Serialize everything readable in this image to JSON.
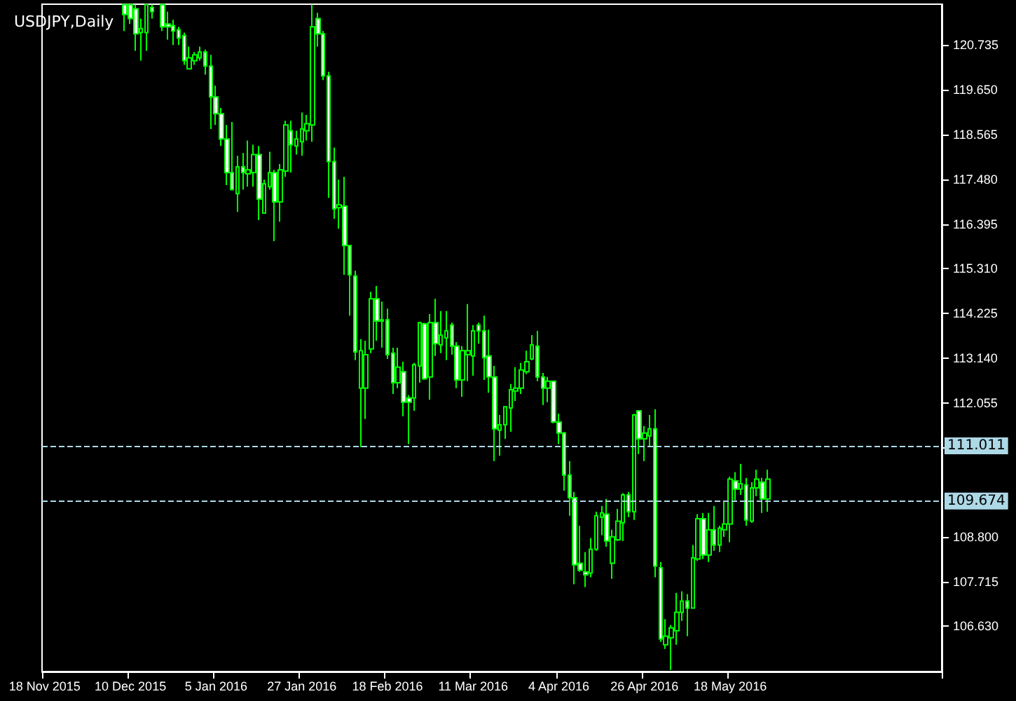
{
  "chart_data": {
    "type": "candlestick",
    "title": "USDJPY,Daily",
    "color": "#00ff00",
    "categories": [
      "18 Nov 2015",
      null,
      null,
      null,
      null,
      null,
      null,
      null,
      null,
      null,
      null,
      null,
      null,
      null,
      null,
      null,
      "10 Dec 2015",
      null,
      null,
      null,
      null,
      null,
      null,
      null,
      null,
      null,
      null,
      null,
      null,
      null,
      null,
      null,
      "5 Jan 2016",
      null,
      null,
      null,
      null,
      null,
      null,
      null,
      null,
      null,
      null,
      null,
      null,
      null,
      null,
      null,
      "27 Jan 2016",
      null,
      null,
      null,
      null,
      null,
      null,
      null,
      null,
      null,
      null,
      null,
      null,
      null,
      null,
      null,
      "18 Feb 2016",
      null,
      null,
      null,
      null,
      null,
      null,
      null,
      null,
      null,
      null,
      null,
      null,
      null,
      null,
      null,
      "11 Mar 2016",
      null,
      null,
      null,
      null,
      null,
      null,
      null,
      null,
      null,
      null,
      null,
      null,
      null,
      null,
      null,
      "4 Apr 2016",
      null,
      null,
      null,
      null,
      null,
      null,
      null,
      null,
      null,
      null,
      null,
      null,
      null,
      null,
      null,
      "26 Apr 2016",
      null,
      null,
      null,
      null,
      null,
      null,
      null,
      null,
      null,
      null,
      null,
      null,
      null,
      null,
      null,
      "18 May 2016",
      null,
      null,
      null,
      null,
      null,
      null,
      null,
      null,
      null,
      null,
      null,
      null,
      null,
      null,
      null,
      null,
      null,
      null,
      null,
      null,
      null,
      null,
      null,
      null,
      null,
      null,
      null,
      null,
      null,
      null,
      null,
      null,
      null,
      null,
      null,
      null,
      null,
      null,
      null
    ],
    "ohlc": [
      null,
      null,
      null,
      null,
      null,
      null,
      null,
      null,
      null,
      null,
      null,
      null,
      null,
      null,
      null,
      [
        121.72,
        121.72,
        121.08,
        121.48
      ],
      [
        121.72,
        121.72,
        121.25,
        121.38
      ],
      [
        121.62,
        121.72,
        120.6,
        121.01
      ],
      [
        121.04,
        121.38,
        120.36,
        121.14
      ],
      [
        121.04,
        121.72,
        120.6,
        121.72
      ],
      [
        121.65,
        121.72,
        121.38,
        121.55
      ],
      null,
      [
        121.72,
        121.72,
        121.08,
        121.18
      ],
      [
        121.25,
        121.55,
        120.87,
        121.18
      ],
      [
        121.21,
        121.35,
        120.74,
        121.08
      ],
      [
        121.11,
        121.18,
        120.74,
        120.91
      ],
      [
        120.97,
        121.04,
        120.26,
        120.36
      ],
      [
        120.16,
        120.7,
        120.16,
        120.43
      ],
      [
        120.36,
        120.57,
        120.26,
        120.5
      ],
      [
        120.43,
        120.7,
        120.36,
        120.57
      ],
      [
        120.57,
        120.63,
        120.02,
        120.23
      ],
      [
        120.23,
        120.5,
        118.7,
        119.48
      ],
      [
        119.48,
        119.75,
        118.8,
        119.07
      ],
      [
        119.07,
        119.21,
        118.29,
        118.46
      ],
      [
        118.46,
        118.8,
        117.34,
        117.64
      ],
      [
        117.64,
        118.87,
        117.23,
        117.23
      ],
      [
        117.13,
        118.05,
        116.69,
        117.78
      ],
      [
        117.78,
        118.12,
        117.23,
        117.64
      ],
      [
        117.61,
        118.42,
        117.3,
        117.71
      ],
      [
        117.64,
        118.32,
        117.3,
        118.08
      ],
      [
        118.08,
        118.29,
        116.49,
        117.0
      ],
      [
        116.66,
        117.47,
        116.66,
        117.37
      ],
      [
        117.3,
        118.15,
        117.23,
        117.64
      ],
      [
        117.64,
        117.71,
        115.98,
        116.93
      ],
      [
        116.93,
        117.85,
        116.45,
        117.71
      ],
      [
        117.68,
        118.9,
        117.54,
        118.8
      ],
      [
        118.66,
        118.9,
        117.64,
        118.32
      ],
      [
        118.29,
        118.66,
        118.08,
        118.46
      ],
      [
        118.39,
        119.1,
        118.05,
        118.7
      ],
      [
        118.66,
        119.04,
        118.42,
        118.83
      ],
      [
        118.8,
        121.72,
        118.39,
        121.18
      ],
      [
        121.38,
        121.52,
        120.7,
        121.01
      ],
      [
        121.01,
        121.08,
        119.89,
        119.99
      ],
      [
        119.99,
        120.09,
        117.03,
        117.91
      ],
      [
        117.91,
        118.25,
        116.52,
        116.76
      ],
      [
        116.79,
        117.47,
        116.28,
        116.86
      ],
      [
        116.83,
        117.54,
        115.16,
        115.87
      ],
      [
        115.87,
        115.87,
        114.17,
        115.16
      ],
      [
        115.13,
        115.26,
        113.09,
        113.29
      ],
      [
        112.41,
        113.6,
        110.98,
        113.32
      ],
      [
        112.41,
        113.56,
        111.66,
        113.22
      ],
      [
        113.36,
        114.75,
        113.26,
        114.58
      ],
      [
        114.58,
        114.89,
        113.56,
        114.04
      ],
      [
        114.07,
        114.51,
        113.39,
        114.04
      ],
      [
        114.07,
        114.34,
        113.12,
        113.22
      ],
      [
        113.26,
        113.39,
        112.27,
        112.54
      ],
      [
        112.54,
        113.39,
        112.41,
        112.92
      ],
      [
        112.81,
        113.05,
        111.73,
        112.07
      ],
      [
        112.17,
        112.24,
        111.05,
        112.07
      ],
      [
        112.17,
        113.02,
        111.86,
        112.98
      ],
      [
        112.95,
        114.0,
        112.54,
        114.0
      ],
      [
        113.97,
        114.0,
        112.61,
        112.64
      ],
      [
        112.68,
        114.21,
        112.13,
        114.0
      ],
      [
        114.0,
        114.58,
        113.19,
        113.49
      ],
      [
        113.46,
        114.28,
        113.26,
        113.7
      ],
      [
        113.63,
        114.28,
        113.09,
        113.8
      ],
      [
        113.94,
        114.0,
        113.22,
        113.43
      ],
      [
        113.43,
        113.53,
        112.41,
        112.61
      ],
      [
        112.61,
        113.43,
        112.2,
        113.32
      ],
      [
        113.22,
        114.45,
        112.58,
        113.32
      ],
      [
        113.19,
        113.94,
        112.71,
        113.8
      ],
      [
        113.94,
        114.0,
        113.49,
        113.8
      ],
      [
        113.8,
        114.17,
        112.61,
        113.15
      ],
      [
        113.19,
        113.83,
        112.3,
        112.68
      ],
      [
        112.68,
        112.95,
        110.64,
        111.42
      ],
      [
        111.39,
        111.76,
        110.77,
        111.52
      ],
      [
        111.52,
        111.96,
        111.18,
        111.96
      ],
      [
        111.93,
        112.51,
        111.35,
        112.37
      ],
      [
        112.34,
        112.92,
        112.1,
        112.41
      ],
      [
        112.41,
        113.02,
        112.27,
        112.85
      ],
      [
        112.81,
        113.32,
        112.75,
        113.05
      ],
      [
        113.12,
        113.7,
        113.09,
        113.46
      ],
      [
        113.43,
        113.8,
        112.58,
        112.68
      ],
      [
        112.68,
        112.78,
        112.0,
        112.41
      ],
      [
        112.41,
        112.68,
        112.07,
        112.58
      ],
      [
        112.58,
        112.58,
        111.56,
        111.59
      ],
      [
        111.59,
        111.79,
        111.05,
        111.32
      ],
      [
        111.32,
        111.35,
        109.92,
        110.3
      ],
      [
        110.3,
        110.64,
        109.31,
        109.75
      ],
      [
        109.75,
        109.89,
        107.65,
        108.12
      ],
      [
        108.16,
        109.07,
        107.95,
        107.99
      ],
      [
        107.95,
        108.43,
        107.58,
        107.88
      ],
      [
        107.92,
        108.77,
        107.82,
        108.5
      ],
      [
        108.5,
        109.41,
        108.46,
        109.31
      ],
      [
        109.28,
        109.55,
        108.84,
        109.38
      ],
      [
        109.35,
        109.72,
        108.56,
        108.7
      ],
      [
        108.16,
        108.97,
        107.78,
        108.8
      ],
      [
        108.73,
        109.48,
        108.7,
        109.18
      ],
      [
        109.14,
        109.86,
        108.7,
        109.82
      ],
      [
        109.82,
        109.89,
        109.28,
        109.41
      ],
      [
        109.41,
        111.79,
        109.21,
        111.76
      ],
      [
        111.86,
        111.86,
        110.81,
        111.18
      ],
      [
        111.18,
        111.49,
        110.64,
        111.32
      ],
      [
        111.25,
        111.76,
        111.01,
        111.42
      ],
      [
        111.42,
        111.9,
        107.82,
        108.09
      ],
      [
        108.05,
        108.19,
        106.25,
        106.32
      ],
      [
        106.18,
        106.8,
        106.08,
        106.39
      ],
      [
        106.35,
        106.66,
        105.57,
        106.59
      ],
      [
        106.52,
        107.44,
        106.18,
        106.97
      ],
      [
        106.97,
        107.48,
        106.76,
        107.24
      ],
      [
        107.24,
        107.41,
        106.39,
        107.07
      ],
      [
        107.07,
        108.6,
        107.07,
        108.29
      ],
      [
        108.26,
        109.35,
        108.22,
        109.24
      ],
      [
        109.24,
        109.38,
        108.26,
        108.36
      ],
      [
        108.36,
        109.38,
        108.19,
        108.97
      ],
      [
        108.97,
        109.55,
        108.46,
        108.6
      ],
      [
        108.6,
        109.07,
        108.43,
        109.01
      ],
      [
        108.97,
        109.65,
        108.8,
        109.11
      ],
      [
        109.11,
        110.26,
        108.67,
        110.2
      ],
      [
        110.16,
        110.37,
        109.69,
        109.96
      ],
      [
        109.96,
        110.57,
        109.82,
        110.09
      ],
      [
        110.06,
        110.23,
        109.07,
        109.21
      ],
      [
        109.18,
        110.13,
        109.14,
        109.99
      ],
      [
        109.99,
        110.43,
        109.79,
        110.2
      ],
      [
        110.13,
        110.23,
        109.38,
        109.72
      ],
      [
        109.72,
        110.43,
        109.41,
        110.2
      ],
      null,
      null,
      null,
      null,
      null,
      null,
      null,
      null,
      null,
      null,
      null,
      null,
      null,
      null,
      null,
      null,
      null,
      null,
      null,
      null,
      null,
      null,
      null,
      null,
      null,
      null,
      null,
      null,
      null,
      null,
      null,
      null
    ],
    "colors": [
      null,
      null,
      null,
      null,
      null,
      null,
      null,
      null,
      null,
      null,
      null,
      null,
      null,
      null,
      null,
      "#ffffff",
      "#ffffff",
      "#ffffff",
      "#000000",
      "#000000",
      "#ffffff",
      null,
      "#ffffff",
      "#ffffff",
      "#ffffff",
      "#ffffff",
      "#ffffff",
      "#000000",
      "#000000",
      "#000000",
      "#ffffff",
      "#ffffff",
      "#ffffff",
      "#ffffff",
      "#ffffff",
      "#ffffff",
      "#000000",
      "#ffffff",
      "#000000",
      "#000000",
      "#ffffff",
      "#000000",
      "#000000",
      "#ffffff",
      "#000000",
      "#000000",
      "#ffffff",
      "#000000",
      "#000000",
      "#000000",
      "#000000",
      "#ffffff",
      "#ffffff",
      "#ffffff",
      "#ffffff",
      "#000000",
      "#ffffff",
      "#ffffff",
      "#ffffff",
      "#000000",
      "#000000",
      "#000000",
      "#ffffff",
      "#ffffff",
      "#ffffff",
      "#ffffff",
      "#000000",
      "#ffffff",
      "#ffffff",
      "#000000",
      "#000000",
      "#ffffff",
      "#000000",
      "#ffffff",
      "#000000",
      "#000000",
      "#ffffff",
      "#ffffff",
      "#000000",
      "#000000",
      "#000000",
      "#ffffff",
      "#ffffff",
      "#ffffff",
      "#ffffff",
      "#000000",
      "#000000",
      "#000000",
      "#000000",
      "#000000",
      "#000000",
      "#000000",
      "#ffffff",
      "#ffffff",
      "#000000",
      "#ffffff",
      "#ffffff",
      "#ffffff",
      "#ffffff",
      "#ffffff",
      "#ffffff",
      "#ffffff",
      "#000000",
      "#000000",
      "#000000",
      "#ffffff",
      "#000000",
      "#000000",
      "#000000",
      "#ffffff",
      "#000000",
      "#ffffff",
      "#000000",
      "#000000",
      "#ffffff",
      "#ffffff",
      "#000000",
      "#000000",
      "#000000",
      "#000000",
      "#ffffff",
      "#000000",
      "#000000",
      "#ffffff",
      "#000000",
      "#ffffff",
      "#000000",
      "#000000",
      "#000000",
      "#ffffff",
      "#000000",
      "#ffffff",
      "#000000",
      "#000000",
      "#ffffff",
      "#000000",
      null,
      null,
      null,
      null,
      null,
      null,
      null,
      null,
      null,
      null,
      null,
      null,
      null,
      null,
      null,
      null,
      null,
      null,
      null,
      null,
      null,
      null,
      null,
      null,
      null,
      null,
      null,
      null,
      null,
      null,
      null,
      null
    ],
    "ylim": [
      105.53,
      121.73
    ],
    "yticks": [
      {
        "value": 106.63,
        "label": "106.630"
      },
      {
        "value": 107.715,
        "label": "107.715"
      },
      {
        "value": 108.8,
        "label": "108.800"
      },
      {
        "value": 110.97,
        "label": null
      },
      {
        "value": 112.055,
        "label": "112.055"
      },
      {
        "value": 113.14,
        "label": "113.140"
      },
      {
        "value": 114.225,
        "label": "114.225"
      },
      {
        "value": 115.31,
        "label": "115.310"
      },
      {
        "value": 116.395,
        "label": "116.395"
      },
      {
        "value": 117.48,
        "label": "117.480"
      },
      {
        "value": 118.565,
        "label": "118.565"
      },
      {
        "value": 119.65,
        "label": "119.650"
      },
      {
        "value": 120.735,
        "label": "120.735"
      }
    ],
    "ref_lines": [
      {
        "axis": "y",
        "value": 111.011,
        "label": "111.011",
        "color": "#add8e6",
        "line_style": "dashed"
      },
      {
        "axis": "y",
        "value": 109.674,
        "label": "109.674",
        "color": "#add8e6",
        "line_style": "dashed"
      }
    ],
    "grid": false
  }
}
